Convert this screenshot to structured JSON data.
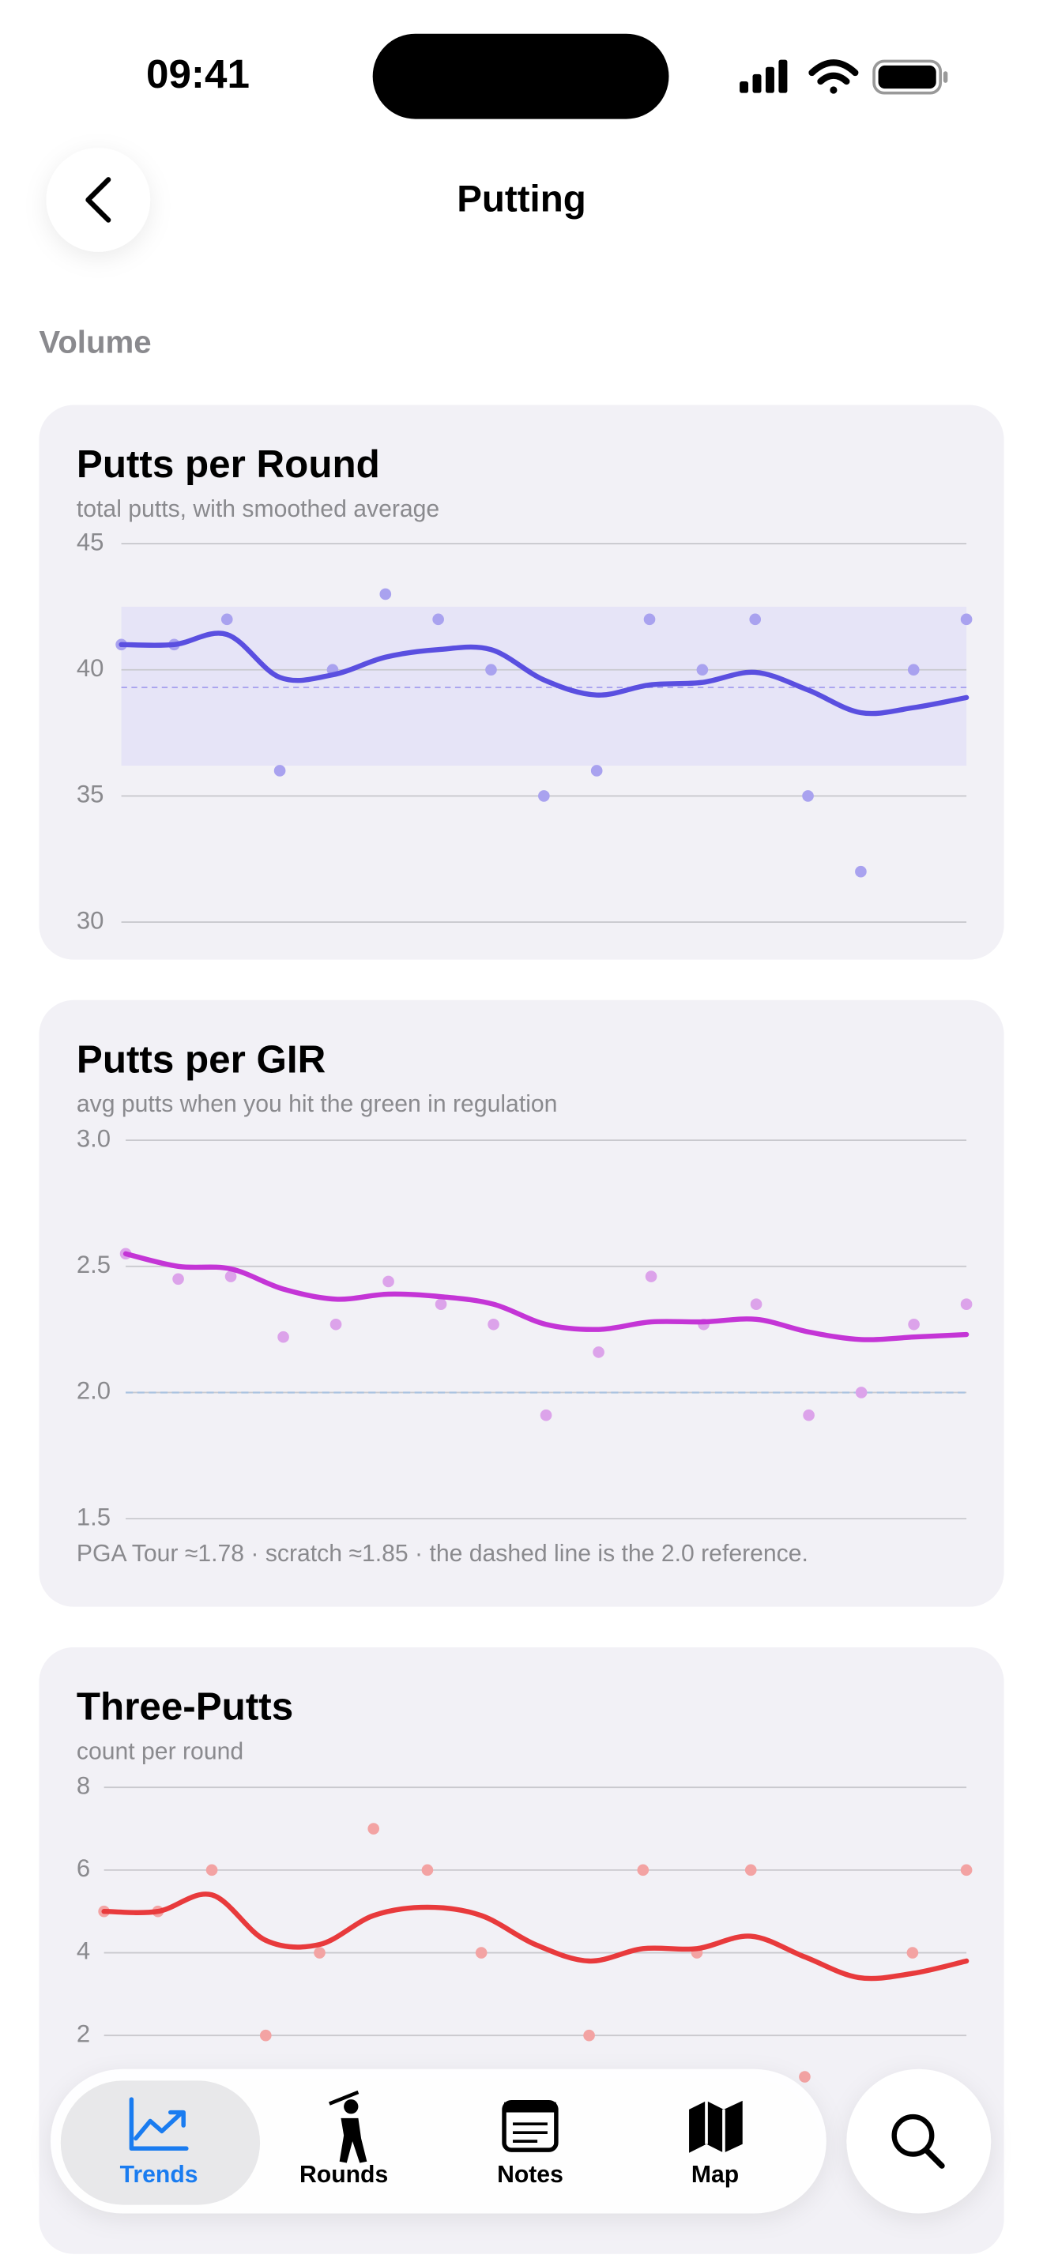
{
  "status_bar": {
    "time": "09:41"
  },
  "nav": {
    "title": "Putting"
  },
  "section": {
    "title": "Volume"
  },
  "charts": [
    {
      "chart_data": {
        "type": "scatter-trend",
        "title": "Putts per Round",
        "subtitle": "total putts, with smoothed average",
        "values": [
          41,
          41,
          42,
          36,
          40,
          43,
          42,
          40,
          35,
          36,
          42,
          40,
          42,
          35,
          32,
          40,
          42
        ],
        "trend": [
          41,
          41,
          41.4,
          39.7,
          39.8,
          40.5,
          40.8,
          40.8,
          39.6,
          39.0,
          39.4,
          39.5,
          39.9,
          39.2,
          38.3,
          38.5,
          38.9
        ],
        "band": [
          36.2,
          42.5
        ],
        "mean": 39.3,
        "ylim": [
          30,
          45
        ],
        "yticks": [
          30,
          35,
          40,
          45
        ],
        "grid": true,
        "point_color": "#a9a2ef",
        "line_color": "#5a4fe0",
        "band_color": "#e6e4f7"
      }
    },
    {
      "chart_data": {
        "type": "scatter-trend",
        "title": "Putts per GIR",
        "subtitle": "avg putts when you hit the green in regulation",
        "values": [
          2.55,
          2.45,
          2.46,
          2.22,
          2.27,
          2.44,
          2.35,
          2.27,
          1.91,
          2.16,
          2.46,
          2.27,
          2.35,
          1.91,
          2.0,
          2.27,
          2.35
        ],
        "trend": [
          2.55,
          2.5,
          2.49,
          2.41,
          2.37,
          2.39,
          2.38,
          2.35,
          2.27,
          2.25,
          2.28,
          2.28,
          2.29,
          2.24,
          2.21,
          2.22,
          2.23
        ],
        "reference": 2.0,
        "ylim": [
          1.5,
          3.0
        ],
        "yticks": [
          1.5,
          {
            "value": 2,
            "label": "2.0"
          },
          2.5,
          {
            "value": 3,
            "label": "3.0"
          }
        ],
        "grid": true,
        "note": "PGA Tour ≈1.78 · scratch ≈1.85 · the dashed line is the 2.0 reference.",
        "point_color": "#dca3ea",
        "line_color": "#c435d6"
      }
    },
    {
      "chart_data": {
        "type": "scatter-trend",
        "title": "Three-Putts",
        "subtitle": "count per round",
        "values": [
          5,
          5,
          6,
          2,
          4,
          7,
          6,
          4,
          null,
          2,
          6,
          4,
          6,
          1,
          null,
          4,
          6
        ],
        "trend": [
          5,
          5,
          5.4,
          4.3,
          4.2,
          4.9,
          5.1,
          4.9,
          4.2,
          3.8,
          4.1,
          4.1,
          4.4,
          3.9,
          3.4,
          3.5,
          3.8
        ],
        "ylim": [
          0,
          8
        ],
        "yticks": [
          2,
          4,
          6,
          8
        ],
        "grid": true,
        "point_color": "#f3a3a3",
        "line_color": "#e83a3c"
      }
    }
  ],
  "tab_bar": {
    "tabs": [
      "Trends",
      "Rounds",
      "Notes",
      "Map"
    ],
    "active": 0
  }
}
